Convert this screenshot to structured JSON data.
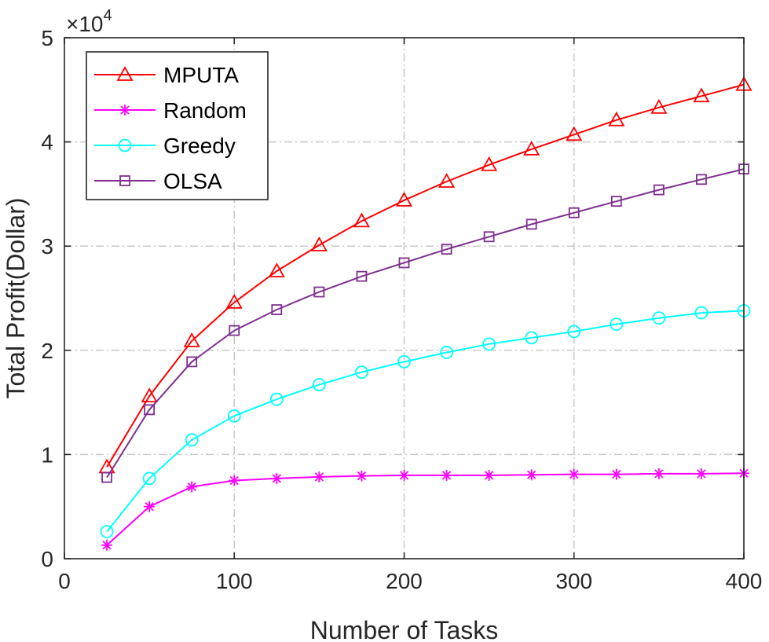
{
  "chart_data": {
    "type": "line",
    "xlabel": "Number of Tasks",
    "ylabel": "Total Profit(Dollar)",
    "y_multiplier_label": "×10",
    "y_multiplier_exponent": "4",
    "xlim": [
      0,
      400
    ],
    "ylim": [
      0,
      50000
    ],
    "x_ticks": [
      0,
      100,
      200,
      300,
      400
    ],
    "x_tick_labels": [
      "0",
      "100",
      "200",
      "300",
      "400"
    ],
    "y_ticks": [
      0,
      10000,
      20000,
      30000,
      40000,
      50000
    ],
    "y_tick_labels": [
      "0",
      "1",
      "2",
      "3",
      "4",
      "5"
    ],
    "grid": true,
    "legend_position": "top-left",
    "x": [
      25,
      50,
      75,
      100,
      125,
      150,
      175,
      200,
      225,
      250,
      275,
      300,
      325,
      350,
      375,
      400
    ],
    "series": [
      {
        "name": "MPUTA",
        "color": "#ff0000",
        "marker": "triangle",
        "values": [
          8800,
          15600,
          20900,
          24600,
          27600,
          30100,
          32400,
          34400,
          36200,
          37800,
          39300,
          40700,
          42100,
          43300,
          44400,
          45500
        ]
      },
      {
        "name": "Random",
        "color": "#ff00ff",
        "marker": "asterisk",
        "values": [
          1300,
          5000,
          6900,
          7500,
          7700,
          7850,
          7950,
          8000,
          8000,
          8000,
          8050,
          8100,
          8100,
          8150,
          8150,
          8200
        ]
      },
      {
        "name": "Greedy",
        "color": "#00ffff",
        "marker": "circle",
        "values": [
          2600,
          7700,
          11400,
          13700,
          15300,
          16700,
          17900,
          18900,
          19800,
          20600,
          21200,
          21800,
          22500,
          23100,
          23600,
          23800
        ]
      },
      {
        "name": "OLSA",
        "color": "#7e2f8e",
        "marker": "square",
        "values": [
          7800,
          14300,
          18900,
          21900,
          23900,
          25600,
          27100,
          28400,
          29700,
          30900,
          32100,
          33200,
          34300,
          35400,
          36400,
          37400
        ]
      }
    ]
  }
}
